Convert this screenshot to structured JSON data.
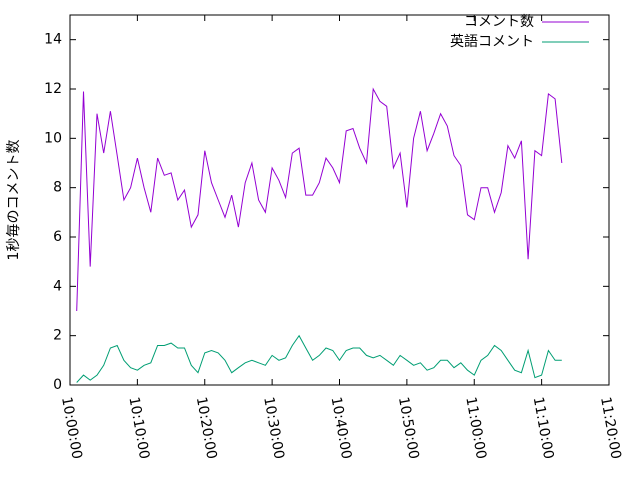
{
  "chart_data": {
    "type": "line",
    "ylabel": "1秒毎のコメント数",
    "x": [
      "10:01:00",
      "10:02:00",
      "10:03:00",
      "10:04:00",
      "10:05:00",
      "10:06:00",
      "10:07:00",
      "10:08:00",
      "10:09:00",
      "10:10:00",
      "10:11:00",
      "10:12:00",
      "10:13:00",
      "10:14:00",
      "10:15:00",
      "10:16:00",
      "10:17:00",
      "10:18:00",
      "10:19:00",
      "10:20:00",
      "10:21:00",
      "10:22:00",
      "10:23:00",
      "10:24:00",
      "10:25:00",
      "10:26:00",
      "10:27:00",
      "10:28:00",
      "10:29:00",
      "10:30:00",
      "10:31:00",
      "10:32:00",
      "10:33:00",
      "10:34:00",
      "10:35:00",
      "10:36:00",
      "10:37:00",
      "10:38:00",
      "10:39:00",
      "10:40:00",
      "10:41:00",
      "10:42:00",
      "10:43:00",
      "10:44:00",
      "10:45:00",
      "10:46:00",
      "10:47:00",
      "10:48:00",
      "10:49:00",
      "10:50:00",
      "10:51:00",
      "10:52:00",
      "10:53:00",
      "10:54:00",
      "10:55:00",
      "10:56:00",
      "10:57:00",
      "10:58:00",
      "10:59:00",
      "11:00:00",
      "11:01:00",
      "11:02:00",
      "11:03:00",
      "11:04:00",
      "11:05:00",
      "11:06:00",
      "11:07:00",
      "11:08:00",
      "11:09:00",
      "11:10:00",
      "11:11:00",
      "11:12:00",
      "11:13:00"
    ],
    "series": [
      {
        "name": "コメント数",
        "color": "#9400d3",
        "values": [
          3.0,
          11.9,
          4.8,
          11.0,
          9.4,
          11.1,
          9.3,
          7.5,
          8.0,
          9.2,
          8.0,
          7.0,
          9.2,
          8.5,
          8.6,
          7.5,
          7.9,
          6.4,
          6.9,
          9.5,
          8.2,
          7.5,
          6.8,
          7.7,
          6.4,
          8.2,
          9.0,
          7.5,
          7.0,
          8.8,
          8.3,
          7.6,
          9.4,
          9.6,
          7.7,
          7.7,
          8.2,
          9.2,
          8.8,
          8.2,
          10.3,
          10.4,
          9.6,
          9.0,
          12.0,
          11.5,
          11.3,
          8.8,
          9.4,
          7.2,
          10.0,
          11.1,
          9.5,
          10.2,
          11.0,
          10.5,
          9.3,
          8.9,
          6.9,
          6.7,
          8.0,
          8.0,
          7.0,
          7.8,
          9.7,
          9.2,
          9.9,
          5.1,
          9.5,
          9.3,
          11.8,
          11.6,
          9.0
        ]
      },
      {
        "name": "英語コメント",
        "color": "#009e73",
        "values": [
          0.1,
          0.4,
          0.2,
          0.4,
          0.8,
          1.5,
          1.6,
          1.0,
          0.7,
          0.6,
          0.8,
          0.9,
          1.6,
          1.6,
          1.7,
          1.5,
          1.5,
          0.8,
          0.5,
          1.3,
          1.4,
          1.3,
          1.0,
          0.5,
          0.7,
          0.9,
          1.0,
          0.9,
          0.8,
          1.2,
          1.0,
          1.1,
          1.6,
          2.0,
          1.5,
          1.0,
          1.2,
          1.5,
          1.4,
          1.0,
          1.4,
          1.5,
          1.5,
          1.2,
          1.1,
          1.2,
          1.0,
          0.8,
          1.2,
          1.0,
          0.8,
          0.9,
          0.6,
          0.7,
          1.0,
          1.0,
          0.7,
          0.9,
          0.6,
          0.4,
          1.0,
          1.2,
          1.6,
          1.4,
          1.0,
          0.6,
          0.5,
          1.4,
          0.3,
          0.4,
          1.4,
          1.0,
          1.0
        ]
      }
    ],
    "xlim": [
      "10:00:00",
      "11:20:00"
    ],
    "xticks": [
      "10:00:00",
      "10:10:00",
      "10:20:00",
      "10:30:00",
      "10:40:00",
      "10:50:00",
      "11:00:00",
      "11:10:00",
      "11:20:00"
    ],
    "ylim": [
      0,
      15
    ],
    "yticks": [
      0,
      2,
      4,
      6,
      8,
      10,
      12,
      14
    ],
    "legend": "top-right"
  }
}
